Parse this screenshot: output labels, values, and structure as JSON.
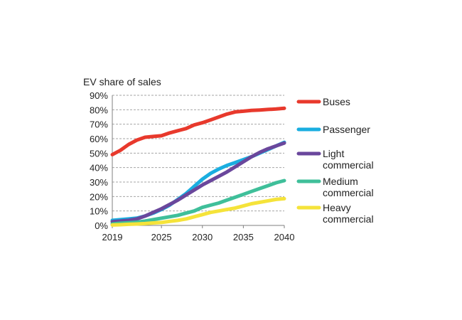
{
  "chart_data": {
    "type": "line",
    "title": "EV share of sales",
    "xlabel": "",
    "ylabel": "EV share of sales",
    "x": [
      2019,
      2020,
      2021,
      2022,
      2023,
      2024,
      2025,
      2026,
      2027,
      2028,
      2029,
      2030,
      2031,
      2032,
      2033,
      2034,
      2035,
      2036,
      2037,
      2038,
      2039,
      2040
    ],
    "xticks": [
      "2019",
      "2025",
      "2030",
      "2035",
      "2040"
    ],
    "xlim": [
      2019,
      2040
    ],
    "yticks": [
      "0%",
      "10%",
      "20%",
      "30%",
      "40%",
      "50%",
      "60%",
      "70%",
      "80%",
      "90%"
    ],
    "ylim": [
      0,
      90
    ],
    "series": [
      {
        "name": "Buses",
        "label_lines": [
          "Buses"
        ],
        "color": "#e8392c",
        "values": [
          49,
          52,
          56,
          59,
          61,
          61.5,
          62,
          64,
          65.5,
          67,
          69.5,
          71,
          73,
          75,
          77,
          78.5,
          79,
          79.5,
          79.8,
          80.2,
          80.5,
          81
        ]
      },
      {
        "name": "Passenger",
        "label_lines": [
          "Passenger"
        ],
        "color": "#1aaee0",
        "values": [
          3.5,
          4,
          4.5,
          5,
          6.5,
          8.5,
          11,
          14,
          18,
          22,
          27,
          32,
          36,
          39,
          41.5,
          43.5,
          45.5,
          47.5,
          50,
          52.5,
          55,
          57.5
        ]
      },
      {
        "name": "Light commercial",
        "label_lines": [
          "Light",
          "commercial"
        ],
        "color": "#6a479c",
        "values": [
          2.5,
          3,
          3.5,
          4.5,
          6.5,
          9,
          11.5,
          14.5,
          17.5,
          21,
          24.5,
          28,
          31,
          34,
          37,
          40.5,
          44,
          47.5,
          50.5,
          53,
          55,
          57
        ]
      },
      {
        "name": "Medium commercial",
        "label_lines": [
          "Medium",
          "commercial"
        ],
        "color": "#3fbf9a",
        "values": [
          1,
          1.5,
          1.8,
          2.2,
          3,
          4,
          5,
          6,
          7,
          8.5,
          10,
          12.5,
          14,
          15.5,
          17.5,
          19.5,
          21.5,
          23.5,
          25.5,
          27.5,
          29.5,
          31
        ]
      },
      {
        "name": "Heavy commercial",
        "label_lines": [
          "Heavy",
          "commercial"
        ],
        "color": "#f5e33a",
        "values": [
          0.3,
          0.5,
          0.8,
          1,
          1.3,
          1.7,
          2,
          2.8,
          3.5,
          4.5,
          6,
          7.5,
          9,
          10,
          11,
          12,
          13.5,
          15,
          16,
          17,
          18,
          18.5
        ]
      }
    ],
    "legend_position": "right"
  }
}
